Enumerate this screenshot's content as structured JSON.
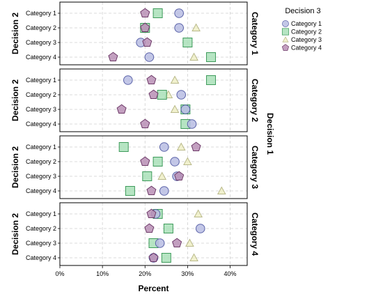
{
  "chart_data": {
    "type": "scatter",
    "x_label": "Percent",
    "x_ticks": [
      "0%",
      "10%",
      "20%",
      "30%",
      "40%"
    ],
    "xlim": [
      0,
      44
    ],
    "y_label": "Decision 2",
    "row_label": "Decision 1",
    "grid": true,
    "legend_position": "top-right",
    "legend_title": "Decision 3",
    "series": [
      {
        "name": "Category 1",
        "shape": "circle",
        "fill": "#b9bde3",
        "stroke": "#5a62a8"
      },
      {
        "name": "Category 2",
        "shape": "square",
        "fill": "#a9e0b9",
        "stroke": "#3d9a5a"
      },
      {
        "name": "Category 3",
        "shape": "triangle",
        "fill": "#eeeec5",
        "stroke": "#b9b98a"
      },
      {
        "name": "Category 4",
        "shape": "pentagon",
        "fill": "#b98fb5",
        "stroke": "#6d3a68"
      }
    ],
    "y_categories": [
      "Category 1",
      "Category 2",
      "Category 3",
      "Category 4"
    ],
    "panels": [
      {
        "label": "Category 1",
        "points": [
          [
            28,
            23,
            null,
            20
          ],
          [
            28,
            20,
            32,
            20
          ],
          [
            19,
            30,
            null,
            20.5
          ],
          [
            21,
            35.5,
            31.5,
            12.5
          ]
        ]
      },
      {
        "label": "Category 2",
        "points": [
          [
            16,
            35.5,
            27,
            21.5
          ],
          [
            28.5,
            24,
            25.5,
            22
          ],
          [
            29.5,
            29.5,
            27,
            14.5
          ],
          [
            31,
            29.5,
            null,
            20
          ]
        ]
      },
      {
        "label": "Category 3",
        "points": [
          [
            24.5,
            15,
            28.5,
            32
          ],
          [
            27,
            23,
            30,
            20
          ],
          [
            27.5,
            20.5,
            24,
            28
          ],
          [
            24.5,
            16.5,
            38,
            21.5
          ]
        ]
      },
      {
        "label": "Category 4",
        "points": [
          [
            22.5,
            23,
            32.5,
            21.5
          ],
          [
            33,
            25.5,
            null,
            21
          ],
          [
            23.5,
            22,
            30.5,
            27.5
          ],
          [
            22,
            25,
            31.5,
            22
          ]
        ]
      }
    ]
  }
}
